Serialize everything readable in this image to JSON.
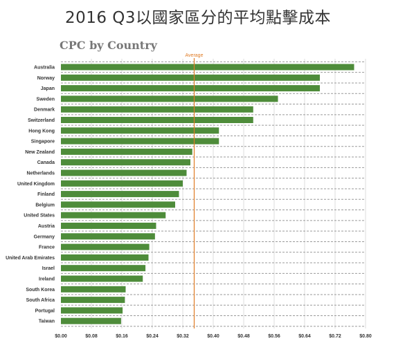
{
  "heading": "2016 Q3以國家區分的平均點擊成本",
  "chart_data": {
    "type": "bar",
    "orientation": "horizontal",
    "title": "CPC by Country",
    "categories": [
      "Australia",
      "Norway",
      "Japan",
      "Sweden",
      "Denmark",
      "Switzerland",
      "Hong Kong",
      "Singapore",
      "New Zealand",
      "Canada",
      "Netherlands",
      "United Kingdom",
      "Finland",
      "Belgium",
      "United States",
      "Austria",
      "Germany",
      "France",
      "United Arab Emirates",
      "Israel",
      "Ireland",
      "South Korea",
      "South Africa",
      "Portugal",
      "Taiwan"
    ],
    "values": [
      0.77,
      0.68,
      0.68,
      0.57,
      0.505,
      0.505,
      0.415,
      0.415,
      0.345,
      0.34,
      0.33,
      0.32,
      0.31,
      0.3,
      0.275,
      0.25,
      0.247,
      0.232,
      0.23,
      0.222,
      0.215,
      0.17,
      0.168,
      0.162,
      0.158
    ],
    "average": {
      "label": "Average",
      "value": 0.35,
      "color": "#e07b24"
    },
    "xlim": [
      0,
      0.8
    ],
    "xticks": [
      "$0.00",
      "$0.08",
      "$0.16",
      "$0.24",
      "$0.32",
      "$0.40",
      "$0.48",
      "$0.56",
      "$0.64",
      "$0.72",
      "$0.80"
    ],
    "bar_color": "#4e8c3a",
    "grid": true
  }
}
